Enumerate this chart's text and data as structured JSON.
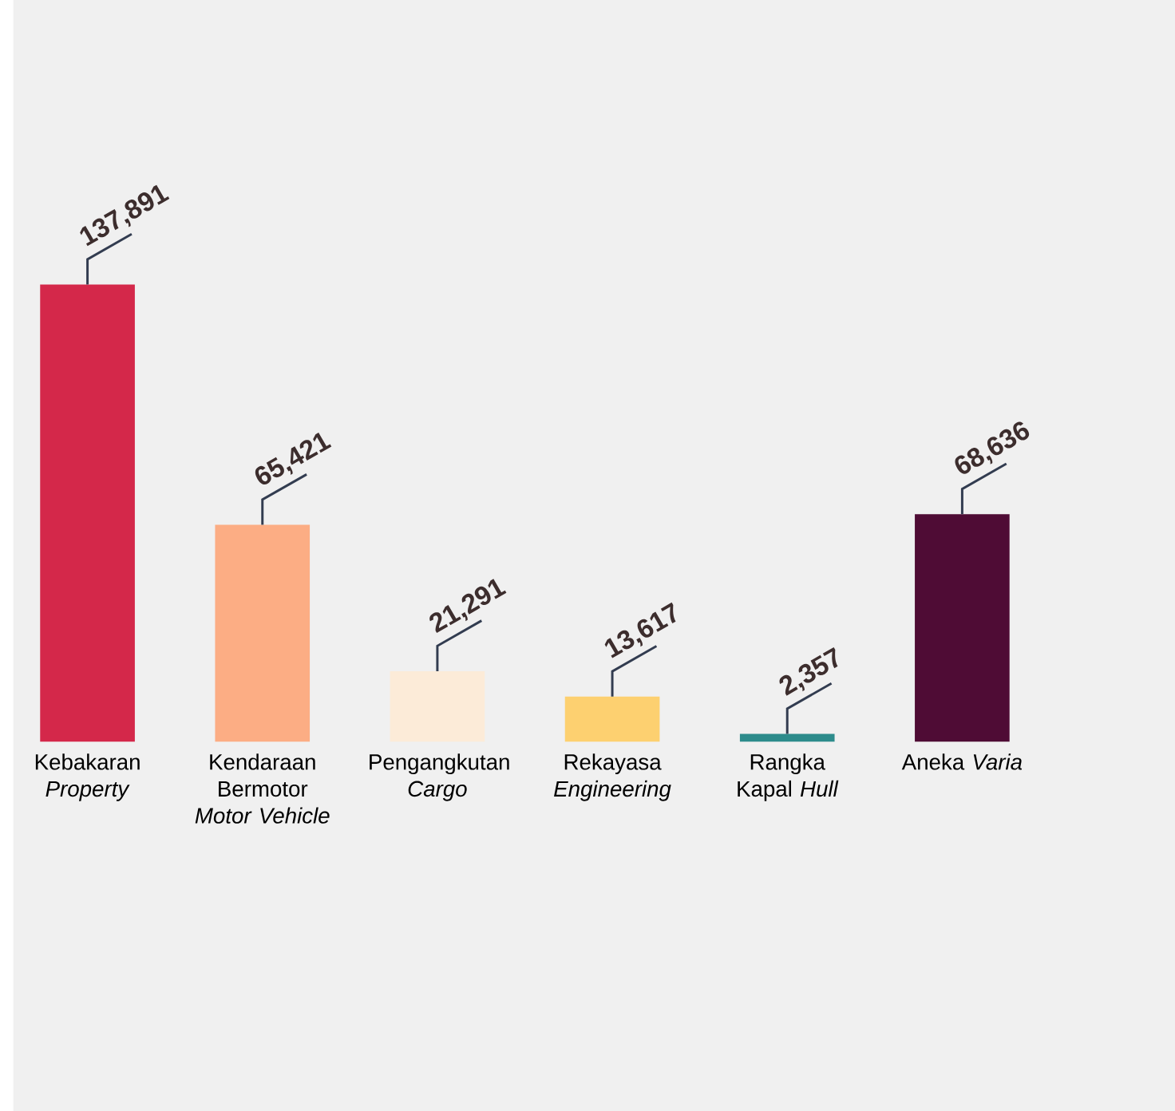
{
  "chart_data": {
    "type": "bar",
    "categories": [
      "Kebakaran *Property*",
      "Kendaraan Bermotor *Motor Vehicle*",
      "Pengangkutan *Cargo*",
      "Rekayasa *Engineering*",
      "Rangka Kapal *Hull*",
      "Aneka *Varia*"
    ],
    "values": [
      137891,
      65421,
      21291,
      13617,
      2357,
      68636
    ],
    "value_labels": [
      "137,891",
      "65,421",
      "21,291",
      "13,617",
      "2,357",
      "68,636"
    ],
    "colors": [
      "#d4284a",
      "#fcad84",
      "#fcebd8",
      "#fdd070",
      "#2e8c8c",
      "#4f0c35"
    ]
  }
}
